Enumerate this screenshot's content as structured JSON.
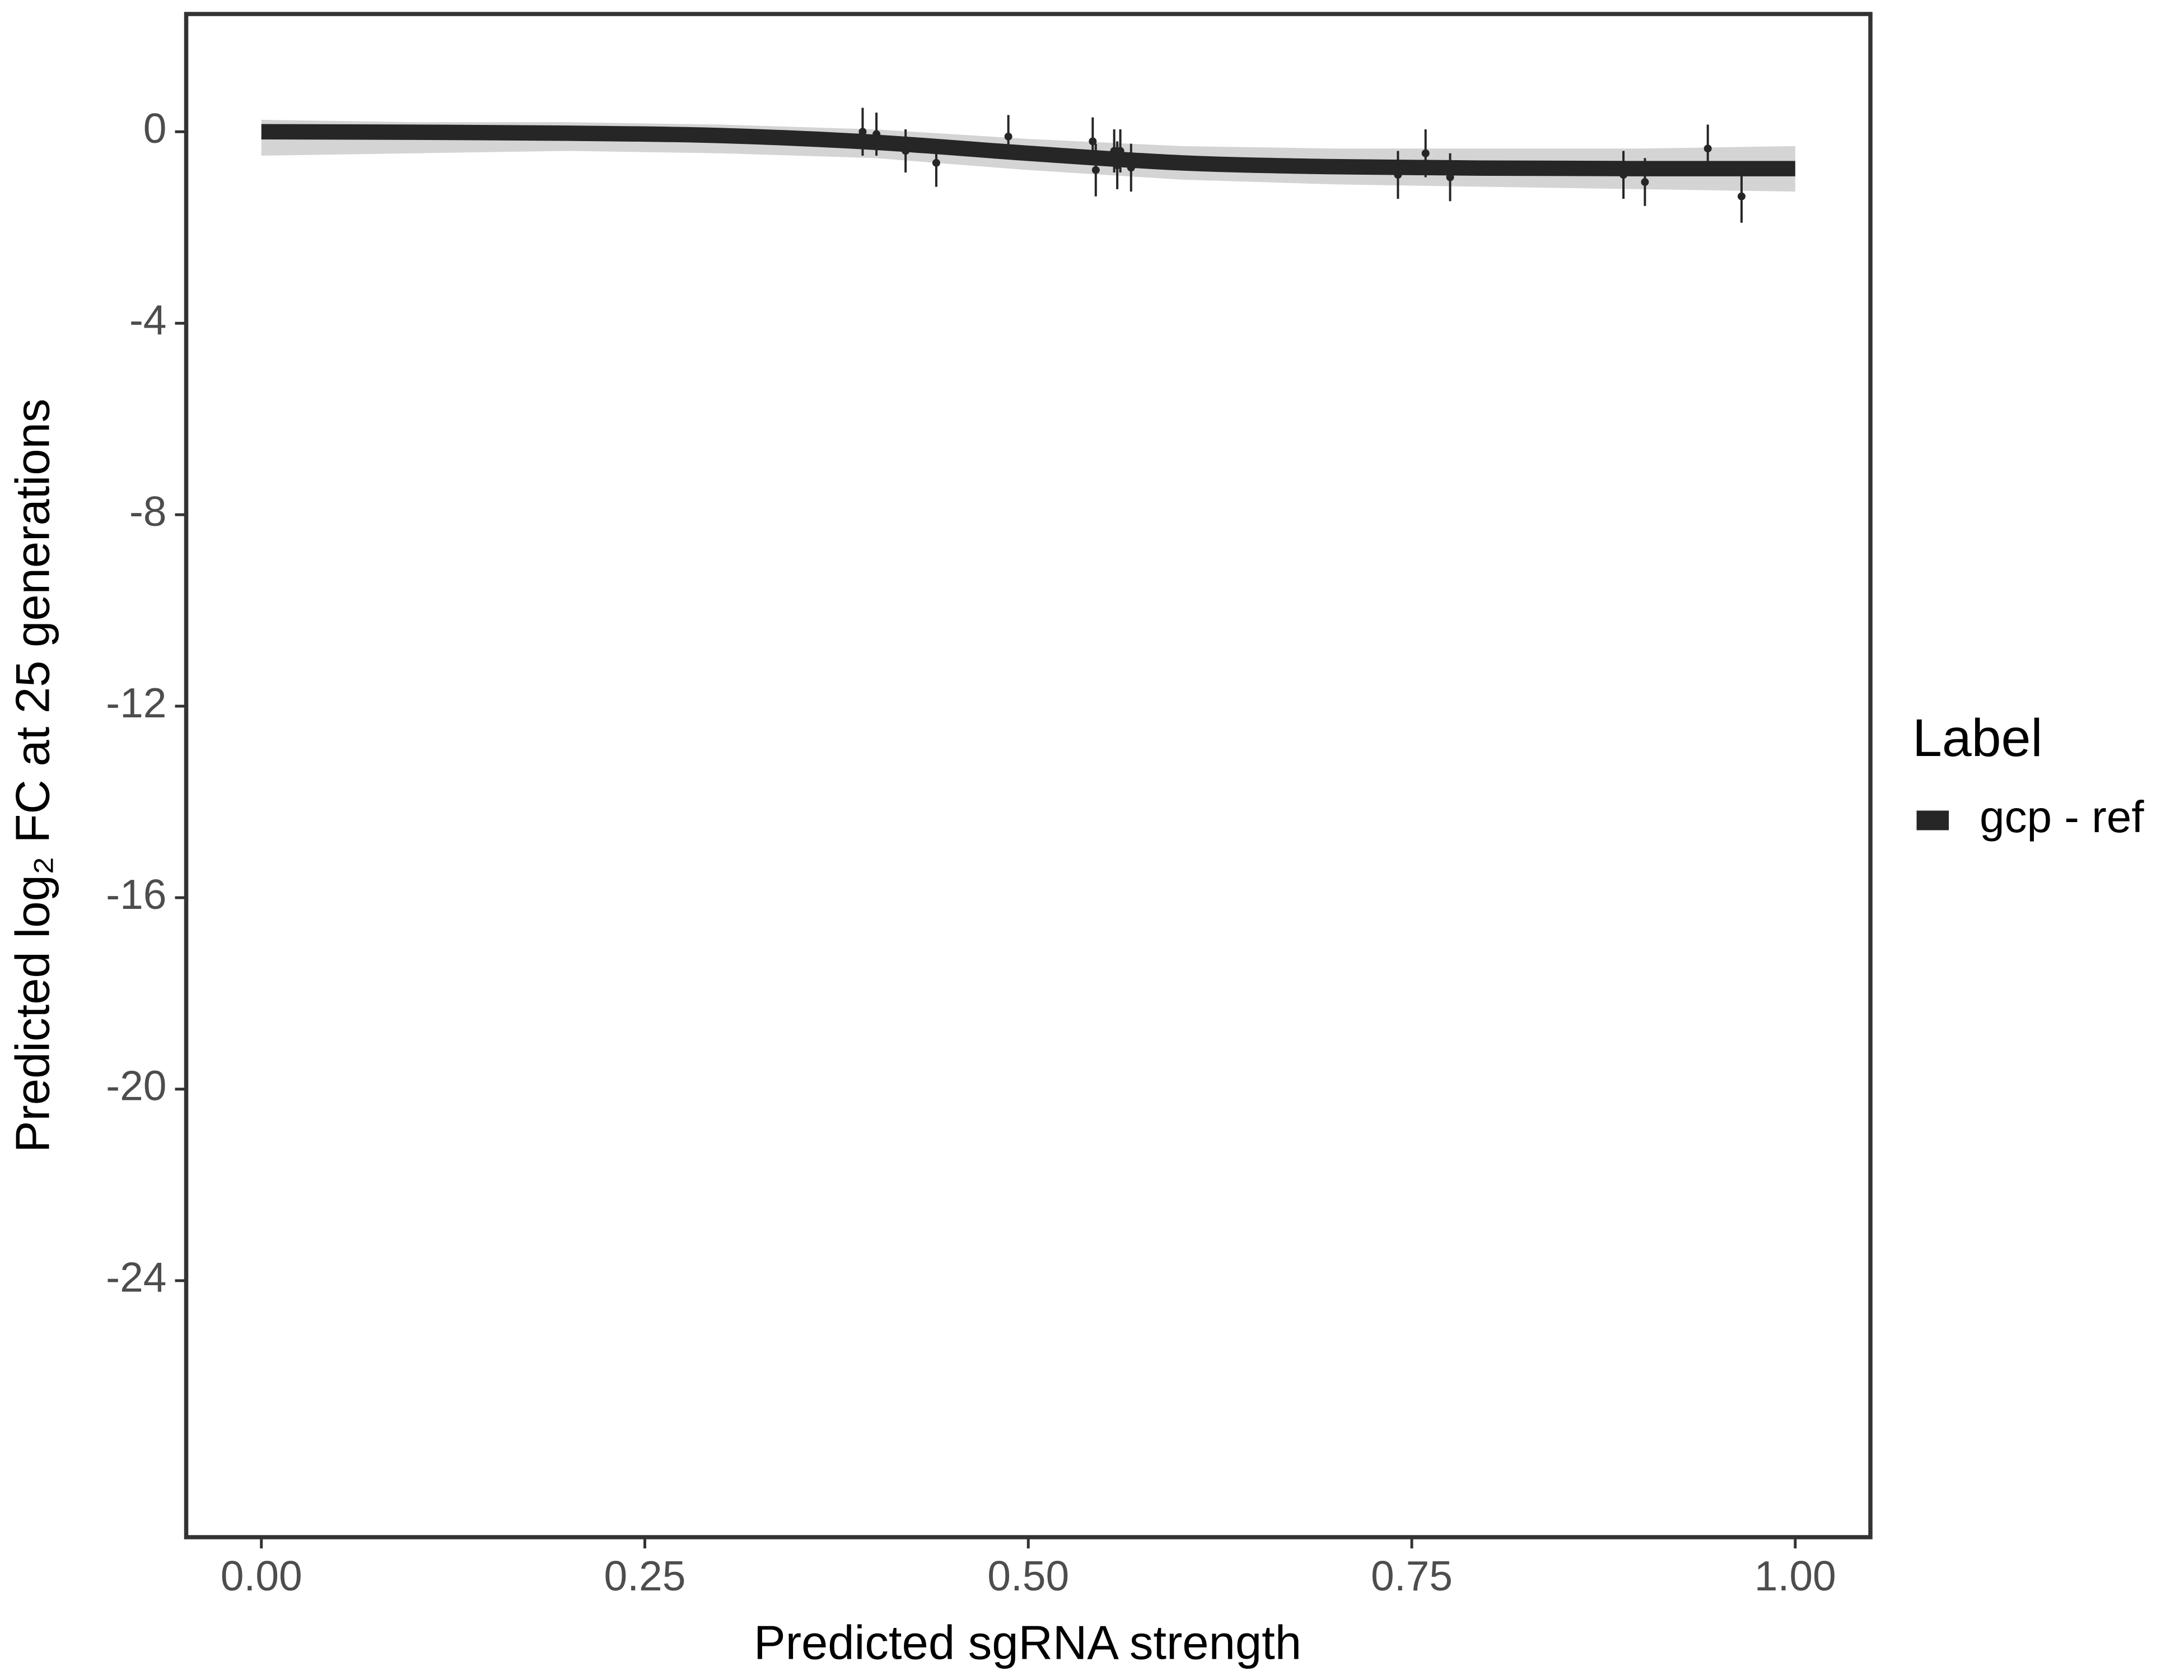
{
  "chart_data": {
    "type": "line",
    "x_label": "Predicted sgRNA strength",
    "y_label": "Predicted  log₂ FC at 25 generations",
    "legend_title": "Label",
    "xlim": [
      -0.049,
      1.049
    ],
    "ylim": [
      -29.36,
      2.46
    ],
    "xticks": [
      {
        "value": 0,
        "label": "0.00"
      },
      {
        "value": 0.25,
        "label": "0.25"
      },
      {
        "value": 0.5,
        "label": "0.50"
      },
      {
        "value": 0.75,
        "label": "0.75"
      },
      {
        "value": 1,
        "label": "1.00"
      }
    ],
    "yticks": [
      0,
      -4,
      -8,
      -12,
      -16,
      -20,
      -24
    ],
    "grid": false,
    "series": [
      {
        "name": "gcp - ref",
        "color": "#262626",
        "x": [
          0,
          0.1,
          0.2,
          0.3,
          0.4,
          0.5,
          0.6,
          0.7,
          0.8,
          0.9,
          1.0
        ],
        "values": [
          0,
          -0.01,
          -0.03,
          -0.08,
          -0.22,
          -0.45,
          -0.65,
          -0.73,
          -0.76,
          -0.77,
          -0.77
        ],
        "lower": [
          -0.5,
          -0.45,
          -0.4,
          -0.45,
          -0.55,
          -0.8,
          -1.0,
          -1.1,
          -1.15,
          -1.2,
          -1.25
        ],
        "upper": [
          0.25,
          0.2,
          0.2,
          0.15,
          0.05,
          -0.15,
          -0.3,
          -0.35,
          -0.35,
          -0.35,
          -0.3
        ]
      }
    ],
    "points": {
      "color": "#262626",
      "x": [
        0.392,
        0.401,
        0.42,
        0.44,
        0.487,
        0.542,
        0.544,
        0.556,
        0.56,
        0.558,
        0.567,
        0.741,
        0.759,
        0.775,
        0.888,
        0.902,
        0.943,
        0.965
      ],
      "values": [
        0.0,
        -0.05,
        -0.4,
        -0.65,
        -0.1,
        -0.2,
        -0.8,
        -0.4,
        -0.4,
        -0.7,
        -0.75,
        -0.9,
        -0.45,
        -0.95,
        -0.9,
        -1.05,
        -0.35,
        -1.35
      ],
      "errors": [
        0.5,
        0.45,
        0.45,
        0.5,
        0.45,
        0.5,
        0.55,
        0.45,
        0.45,
        0.5,
        0.5,
        0.5,
        0.5,
        0.5,
        0.5,
        0.5,
        0.5,
        0.55
      ]
    }
  }
}
